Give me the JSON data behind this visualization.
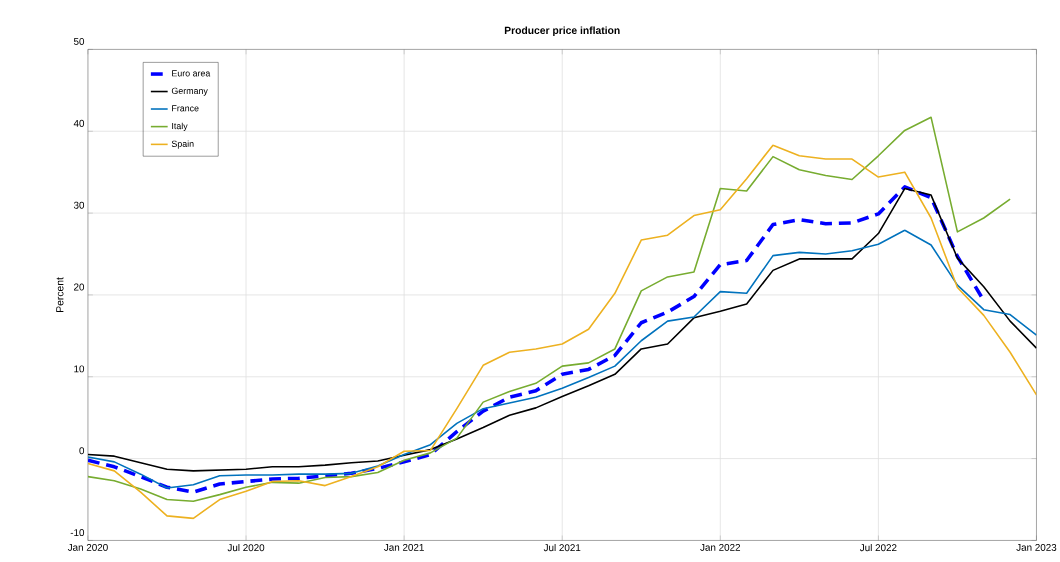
{
  "chart_data": {
    "type": "line",
    "title": "Producer price inflation",
    "ylabel": "Percent",
    "x": [
      "2020-01",
      "2020-02",
      "2020-03",
      "2020-04",
      "2020-05",
      "2020-06",
      "2020-07",
      "2020-08",
      "2020-09",
      "2020-10",
      "2020-11",
      "2020-12",
      "2021-01",
      "2021-02",
      "2021-03",
      "2021-04",
      "2021-05",
      "2021-06",
      "2021-07",
      "2021-08",
      "2021-09",
      "2021-10",
      "2021-11",
      "2021-12",
      "2022-01",
      "2022-02",
      "2022-03",
      "2022-04",
      "2022-05",
      "2022-06",
      "2022-07",
      "2022-08",
      "2022-09",
      "2022-10",
      "2022-11",
      "2022-12",
      "2023-01"
    ],
    "series": [
      {
        "name": "Euro area",
        "color": "#0000ff",
        "line_style": "dashed",
        "values": [
          -0.2,
          -1.0,
          -2.2,
          -3.5,
          -4.1,
          -3.1,
          -2.8,
          -2.5,
          -2.4,
          -2.1,
          -1.8,
          -1.2,
          -0.4,
          0.5,
          3.3,
          5.8,
          7.5,
          8.3,
          10.3,
          10.9,
          12.6,
          16.6,
          17.9,
          19.8,
          23.7,
          24.2,
          28.6,
          29.2,
          28.7,
          28.8,
          29.9,
          33.2,
          31.9,
          24.7,
          19.3,
          null,
          null
        ]
      },
      {
        "name": "Germany",
        "color": "#000000",
        "values": [
          0.5,
          0.3,
          -0.5,
          -1.3,
          -1.5,
          -1.4,
          -1.3,
          -1.0,
          -1.0,
          -0.8,
          -0.5,
          -0.3,
          0.4,
          1.1,
          2.4,
          3.8,
          5.3,
          6.2,
          7.6,
          8.9,
          10.3,
          13.4,
          14.0,
          17.2,
          18.0,
          18.9,
          23.0,
          24.4,
          24.4,
          24.4,
          27.5,
          33.0,
          32.2,
          24.5,
          21.0,
          16.8,
          13.5
        ]
      },
      {
        "name": "France",
        "color": "#0072bd",
        "values": [
          0.2,
          -0.4,
          -1.9,
          -3.6,
          -3.2,
          -2.1,
          -2.0,
          -2.0,
          -1.9,
          -1.9,
          -1.8,
          -0.9,
          0.5,
          1.7,
          4.3,
          6.1,
          6.8,
          7.5,
          8.6,
          9.9,
          11.3,
          14.4,
          16.8,
          17.3,
          20.4,
          20.2,
          24.8,
          25.2,
          25.0,
          25.4,
          26.2,
          27.9,
          26.1,
          21.2,
          18.2,
          17.6,
          15.1
        ]
      },
      {
        "name": "Italy",
        "color": "#77ac30",
        "values": [
          -2.2,
          -2.7,
          -3.7,
          -5.0,
          -5.2,
          -4.4,
          -3.5,
          -2.9,
          -3.0,
          -2.3,
          -2.2,
          -1.7,
          -0.2,
          0.7,
          2.5,
          6.9,
          8.2,
          9.2,
          11.3,
          11.7,
          13.4,
          20.5,
          22.2,
          22.8,
          33.0,
          32.7,
          36.9,
          35.3,
          34.6,
          34.1,
          37.0,
          40.1,
          41.7,
          27.7,
          29.4,
          31.7,
          null
        ]
      },
      {
        "name": "Spain",
        "color": "#edb120",
        "values": [
          -0.6,
          -1.5,
          -4.1,
          -7.0,
          -7.3,
          -5.0,
          -4.0,
          -2.8,
          -2.7,
          -3.3,
          -2.2,
          -1.0,
          0.9,
          1.0,
          6.1,
          11.4,
          13.0,
          13.4,
          14.0,
          15.8,
          20.2,
          26.7,
          27.3,
          29.7,
          30.4,
          34.2,
          38.3,
          37.0,
          36.6,
          36.6,
          34.4,
          35.0,
          29.4,
          20.9,
          17.5,
          13.0,
          7.8
        ]
      }
    ],
    "xlim": [
      "2020-01",
      "2023-01"
    ],
    "xticks": [
      {
        "value": "2020-01",
        "label": "Jan 2020"
      },
      {
        "value": "2020-07",
        "label": "Jul 2020"
      },
      {
        "value": "2021-01",
        "label": "Jan 2021"
      },
      {
        "value": "2021-07",
        "label": "Jul 2021"
      },
      {
        "value": "2022-01",
        "label": "Jan 2022"
      },
      {
        "value": "2022-07",
        "label": "Jul 2022"
      },
      {
        "value": "2023-01",
        "label": "Jan 2023"
      }
    ],
    "ylim": [
      -10,
      50
    ],
    "yticks": [
      -10,
      0,
      10,
      20,
      30,
      40,
      50
    ],
    "grid": true,
    "legend": "top left",
    "line_style": "solid",
    "marker": "none"
  }
}
